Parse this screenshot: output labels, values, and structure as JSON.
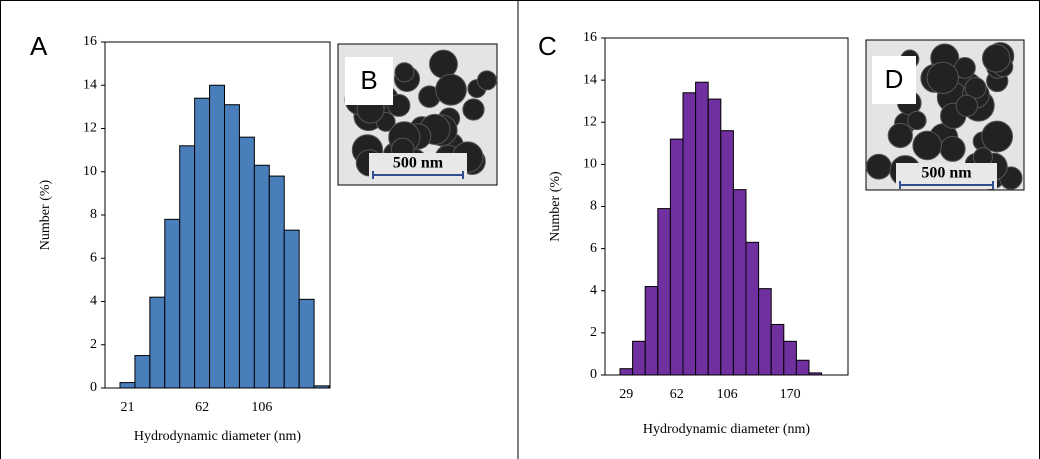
{
  "chart_data": [
    {
      "type": "bar",
      "panel_label": "A",
      "inset_label": "B",
      "scale_bar_label": "500 nm",
      "xlabel": "Hydrodynamic diameter (nm)",
      "ylabel": "Number (%)",
      "categories": [
        "21",
        null,
        null,
        null,
        null,
        "62",
        null,
        null,
        null,
        "106",
        null,
        null,
        null,
        null
      ],
      "values": [
        0.25,
        1.5,
        4.2,
        7.8,
        11.2,
        13.4,
        14.0,
        13.1,
        11.6,
        10.3,
        9.8,
        7.3,
        4.1,
        0.1
      ],
      "color": "#4a7ebb",
      "edgecolor": "#000000",
      "ylim": [
        0,
        16
      ],
      "yticks": [
        0,
        2,
        4,
        6,
        8,
        10,
        12,
        14,
        16
      ]
    },
    {
      "type": "bar",
      "panel_label": "C",
      "inset_label": "D",
      "scale_bar_label": "500 nm",
      "xlabel": "Hydrodynamic diameter (nm)",
      "ylabel": "Number (%)",
      "categories": [
        "29",
        null,
        null,
        null,
        "62",
        null,
        null,
        null,
        "106",
        null,
        null,
        null,
        null,
        "170",
        null,
        null
      ],
      "values": [
        0.3,
        1.6,
        4.2,
        7.9,
        11.2,
        13.4,
        13.9,
        13.1,
        11.6,
        8.8,
        6.3,
        4.1,
        2.4,
        1.6,
        0.7,
        0.1
      ],
      "color": "#7030a0",
      "edgecolor": "#000000",
      "ylim": [
        0,
        16
      ],
      "yticks": [
        0,
        2,
        4,
        6,
        8,
        10,
        12,
        14,
        16
      ]
    }
  ]
}
